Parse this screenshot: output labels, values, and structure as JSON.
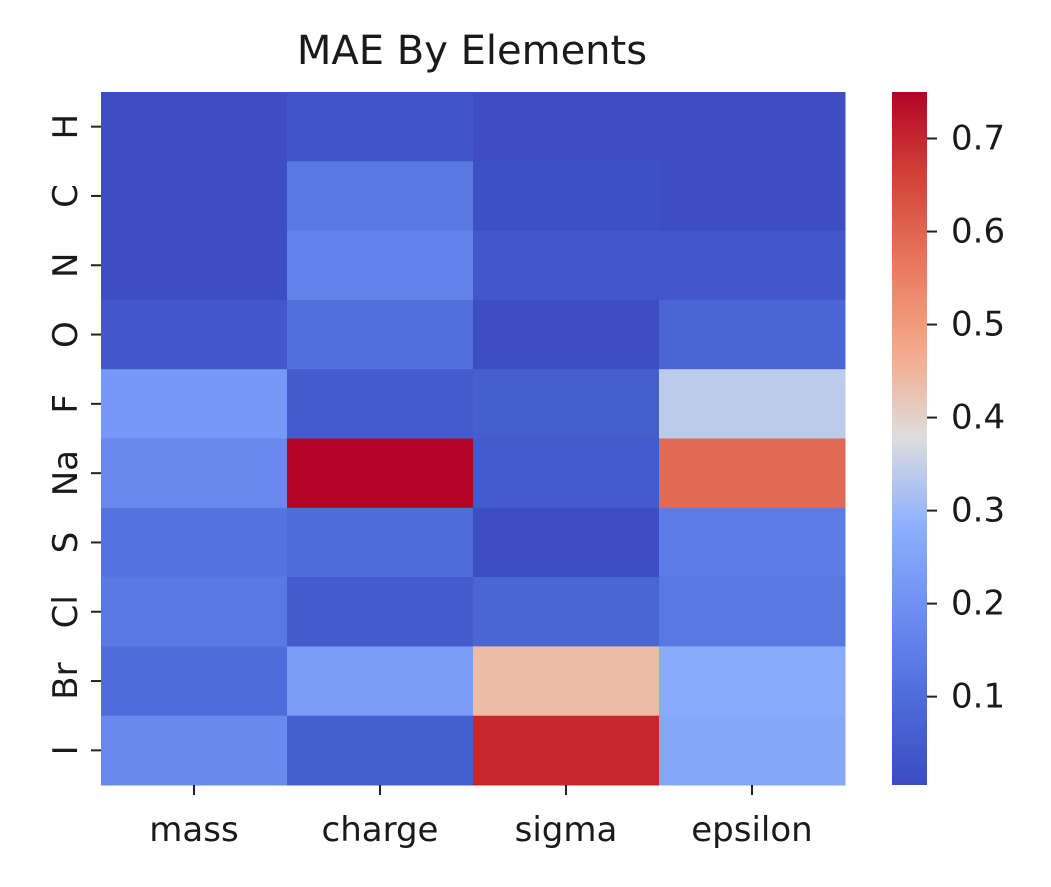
{
  "chart_data": {
    "type": "heatmap",
    "title": "MAE By Elements",
    "xlabel": "",
    "ylabel": "",
    "x_categories": [
      "mass",
      "charge",
      "sigma",
      "epsilon"
    ],
    "y_categories": [
      "H",
      "C",
      "N",
      "O",
      "F",
      "Na",
      "S",
      "Cl",
      "Br",
      "I"
    ],
    "values": [
      [
        0.01,
        0.03,
        0.01,
        0.01
      ],
      [
        0.01,
        0.13,
        0.02,
        0.01
      ],
      [
        0.01,
        0.16,
        0.04,
        0.04
      ],
      [
        0.04,
        0.11,
        0.01,
        0.08
      ],
      [
        0.22,
        0.05,
        0.06,
        0.34
      ],
      [
        0.18,
        0.75,
        0.05,
        0.59
      ],
      [
        0.12,
        0.1,
        0.01,
        0.14
      ],
      [
        0.13,
        0.05,
        0.08,
        0.13
      ],
      [
        0.1,
        0.23,
        0.44,
        0.27
      ],
      [
        0.18,
        0.06,
        0.7,
        0.26
      ]
    ],
    "colorscale": "coolwarm",
    "vmin": 0.005,
    "vmax": 0.75,
    "colorbar_ticks": [
      "0.1",
      "0.2",
      "0.3",
      "0.4",
      "0.5",
      "0.6",
      "0.7"
    ],
    "grid": false
  }
}
